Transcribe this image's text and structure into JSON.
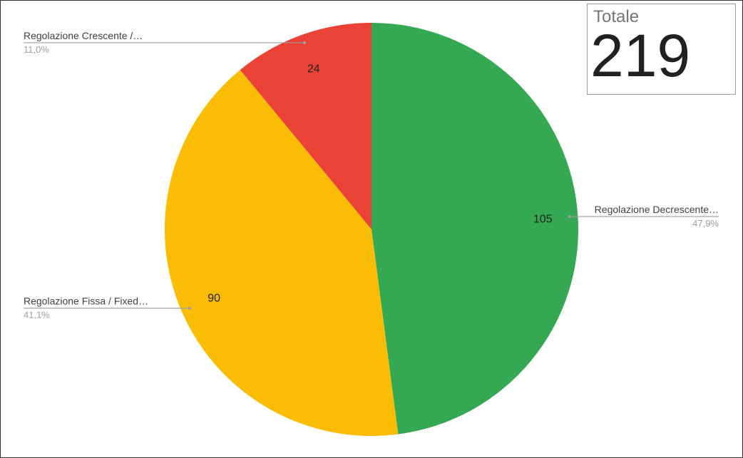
{
  "scorecard": {
    "label": "Totale",
    "value": "219"
  },
  "chart_data": {
    "type": "pie",
    "start_angle_deg": 0,
    "direction": "clockwise",
    "slices": [
      {
        "label": "Regolazione Decrescente…",
        "value": 105,
        "percent": "47,9%",
        "color": "#34a853",
        "legend_side": "right"
      },
      {
        "label": "Regolazione Fissa / Fixed…",
        "value": 90,
        "percent": "41,1%",
        "color": "#fbbc04",
        "legend_side": "left"
      },
      {
        "label": "Regolazione Crescente /…",
        "value": 24,
        "percent": "11,0%",
        "color": "#ea4335",
        "legend_side": "left"
      }
    ]
  }
}
